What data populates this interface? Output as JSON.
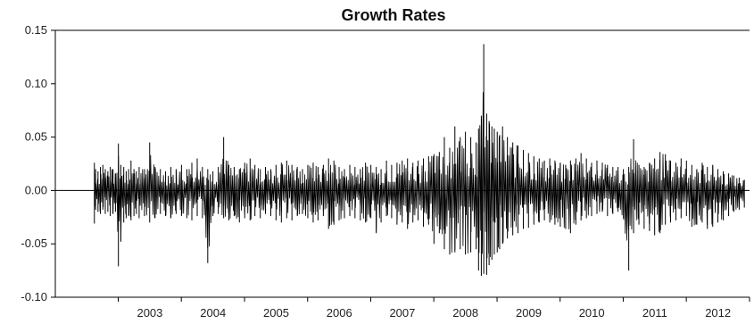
{
  "chart_data": {
    "type": "line",
    "title": "Growth Rates",
    "xlabel": "",
    "ylabel": "",
    "ylim": [
      -0.1,
      0.15
    ],
    "xlim": [
      "2002-01-01",
      "2012-12-31"
    ],
    "y_ticks": [
      "-0.10",
      "-0.05",
      "0.00",
      "0.05",
      "0.10",
      "0.15"
    ],
    "x_ticks": [
      "2003",
      "2004",
      "2005",
      "2006",
      "2007",
      "2008",
      "2009",
      "2010",
      "2011",
      "2012"
    ],
    "grid": false,
    "zero_line": true,
    "series": [
      {
        "color": "#000000",
        "sample_every": "approx. 5 trading days (envelope sketch of daily series)",
        "x": [
          "2002-08-15",
          "2002-08-22",
          "2002-09-05",
          "2002-09-19",
          "2002-10-03",
          "2002-10-17",
          "2002-11-01",
          "2002-11-15",
          "2002-12-01",
          "2002-12-15",
          "2003-01-01",
          "2003-01-15",
          "2003-02-01",
          "2003-02-15",
          "2003-03-01",
          "2003-03-15",
          "2003-04-01",
          "2003-04-15",
          "2003-05-01",
          "2003-06-01",
          "2003-07-01",
          "2003-08-01",
          "2003-09-01",
          "2003-10-01",
          "2003-11-01",
          "2003-12-01",
          "2004-01-01",
          "2004-02-01",
          "2004-03-01",
          "2004-04-01",
          "2004-05-01",
          "2004-06-01",
          "2004-07-01",
          "2004-08-01",
          "2004-09-01",
          "2004-10-01",
          "2004-11-01",
          "2004-12-01",
          "2005-01-01",
          "2005-02-01",
          "2005-03-01",
          "2005-04-01",
          "2005-05-01",
          "2005-06-01",
          "2005-07-01",
          "2005-08-01",
          "2005-09-01",
          "2005-10-01",
          "2005-11-01",
          "2005-12-01",
          "2006-01-01",
          "2006-02-01",
          "2006-03-01",
          "2006-04-01",
          "2006-05-01",
          "2006-06-01",
          "2006-07-01",
          "2006-08-01",
          "2006-09-01",
          "2006-10-01",
          "2006-11-01",
          "2006-12-01",
          "2007-01-01",
          "2007-02-01",
          "2007-03-01",
          "2007-04-01",
          "2007-05-01",
          "2007-06-01",
          "2007-07-01",
          "2007-08-01",
          "2007-09-01",
          "2007-10-01",
          "2007-11-01",
          "2007-12-01",
          "2008-01-01",
          "2008-02-01",
          "2008-03-01",
          "2008-04-01",
          "2008-05-01",
          "2008-06-01",
          "2008-07-01",
          "2008-08-01",
          "2008-09-01",
          "2008-09-15",
          "2008-10-01",
          "2008-10-15",
          "2008-11-01",
          "2008-11-15",
          "2008-12-01",
          "2008-12-15",
          "2009-01-01",
          "2009-01-15",
          "2009-02-01",
          "2009-03-01",
          "2009-04-01",
          "2009-05-01",
          "2009-06-01",
          "2009-07-01",
          "2009-08-01",
          "2009-09-01",
          "2009-10-01",
          "2009-11-01",
          "2009-12-01",
          "2010-01-01",
          "2010-02-01",
          "2010-03-01",
          "2010-04-01",
          "2010-05-01",
          "2010-06-01",
          "2010-07-01",
          "2010-08-01",
          "2010-09-01",
          "2010-10-01",
          "2010-11-01",
          "2010-12-01",
          "2011-01-01",
          "2011-02-01",
          "2011-03-01",
          "2011-04-01",
          "2011-05-01",
          "2011-06-01",
          "2011-07-01",
          "2011-08-01",
          "2011-09-01",
          "2011-10-01",
          "2011-11-01",
          "2011-12-01",
          "2012-01-01",
          "2012-02-01",
          "2012-03-01",
          "2012-04-01",
          "2012-05-01",
          "2012-06-01",
          "2012-07-01",
          "2012-08-01",
          "2012-09-01",
          "2012-10-01",
          "2012-11-01",
          "2012-12-01"
        ],
        "high": [
          0.026,
          0.02,
          0.018,
          0.022,
          0.024,
          0.02,
          0.018,
          0.022,
          0.02,
          0.016,
          0.044,
          0.024,
          0.022,
          0.018,
          0.02,
          0.028,
          0.02,
          0.018,
          0.022,
          0.02,
          0.045,
          0.022,
          0.02,
          0.018,
          0.022,
          0.02,
          0.024,
          0.02,
          0.026,
          0.03,
          0.022,
          0.02,
          0.018,
          0.022,
          0.05,
          0.024,
          0.022,
          0.02,
          0.026,
          0.03,
          0.024,
          0.02,
          0.022,
          0.02,
          0.024,
          0.026,
          0.028,
          0.024,
          0.022,
          0.02,
          0.024,
          0.026,
          0.022,
          0.024,
          0.03,
          0.028,
          0.022,
          0.02,
          0.024,
          0.022,
          0.02,
          0.026,
          0.024,
          0.022,
          0.02,
          0.028,
          0.024,
          0.026,
          0.028,
          0.03,
          0.026,
          0.028,
          0.03,
          0.032,
          0.034,
          0.036,
          0.05,
          0.04,
          0.06,
          0.05,
          0.055,
          0.05,
          0.045,
          0.058,
          0.07,
          0.137,
          0.072,
          0.065,
          0.06,
          0.058,
          0.055,
          0.052,
          0.06,
          0.05,
          0.045,
          0.042,
          0.038,
          0.035,
          0.032,
          0.03,
          0.028,
          0.03,
          0.028,
          0.026,
          0.024,
          0.028,
          0.03,
          0.035,
          0.03,
          0.026,
          0.028,
          0.026,
          0.024,
          0.022,
          0.022,
          0.02,
          0.022,
          0.048,
          0.024,
          0.022,
          0.026,
          0.03,
          0.036,
          0.034,
          0.028,
          0.026,
          0.03,
          0.028,
          0.024,
          0.02,
          0.026,
          0.022,
          0.024,
          0.02,
          0.018,
          0.016,
          0.014,
          0.012,
          0.01
        ],
        "low": [
          -0.031,
          -0.018,
          -0.02,
          -0.022,
          -0.018,
          -0.022,
          -0.02,
          -0.024,
          -0.022,
          -0.02,
          -0.071,
          -0.048,
          -0.03,
          -0.026,
          -0.024,
          -0.028,
          -0.024,
          -0.022,
          -0.026,
          -0.024,
          -0.03,
          -0.026,
          -0.022,
          -0.024,
          -0.026,
          -0.022,
          -0.024,
          -0.026,
          -0.028,
          -0.024,
          -0.026,
          -0.068,
          -0.024,
          -0.022,
          -0.026,
          -0.028,
          -0.024,
          -0.03,
          -0.026,
          -0.028,
          -0.024,
          -0.026,
          -0.022,
          -0.024,
          -0.028,
          -0.03,
          -0.026,
          -0.028,
          -0.024,
          -0.022,
          -0.026,
          -0.03,
          -0.028,
          -0.024,
          -0.036,
          -0.032,
          -0.028,
          -0.026,
          -0.024,
          -0.026,
          -0.028,
          -0.03,
          -0.026,
          -0.04,
          -0.03,
          -0.024,
          -0.026,
          -0.032,
          -0.03,
          -0.036,
          -0.03,
          -0.028,
          -0.034,
          -0.032,
          -0.05,
          -0.04,
          -0.055,
          -0.06,
          -0.058,
          -0.055,
          -0.06,
          -0.058,
          -0.055,
          -0.075,
          -0.08,
          -0.078,
          -0.079,
          -0.07,
          -0.065,
          -0.06,
          -0.058,
          -0.055,
          -0.05,
          -0.045,
          -0.042,
          -0.04,
          -0.036,
          -0.035,
          -0.032,
          -0.03,
          -0.028,
          -0.03,
          -0.032,
          -0.034,
          -0.036,
          -0.04,
          -0.032,
          -0.028,
          -0.026,
          -0.024,
          -0.022,
          -0.02,
          -0.024,
          -0.022,
          -0.02,
          -0.026,
          -0.075,
          -0.04,
          -0.032,
          -0.036,
          -0.038,
          -0.042,
          -0.04,
          -0.032,
          -0.03,
          -0.028,
          -0.026,
          -0.024,
          -0.034,
          -0.032,
          -0.03,
          -0.036,
          -0.034,
          -0.03,
          -0.028,
          -0.024,
          -0.02,
          -0.018,
          -0.016
        ]
      }
    ]
  }
}
